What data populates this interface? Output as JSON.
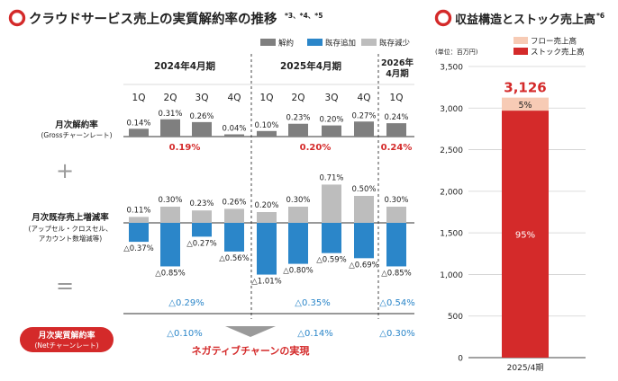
{
  "left_panel": {
    "title": "クラウドサービス売上の実質解約率の推移",
    "title_sup": "*3、*4、*5",
    "legend": [
      {
        "label": "解約",
        "color": "#7f7f7f"
      },
      {
        "label": "既存追加",
        "color": "#2b86c9"
      },
      {
        "label": "既存減少",
        "color": "#bdbdbd"
      }
    ],
    "periods": [
      {
        "label": "2024年4月期"
      },
      {
        "label": "2025年4月期"
      },
      {
        "label_line1": "2026年",
        "label_line2": "4月期"
      }
    ],
    "quarters": [
      "1Q",
      "2Q",
      "3Q",
      "4Q",
      "1Q",
      "2Q",
      "3Q",
      "4Q",
      "1Q"
    ],
    "row1_label": "月次解約率",
    "row1_sublabel": "(Grossチャーンレート)",
    "row2_label": "月次既存売上増減率",
    "row2_sublabel1": "(アップセル・クロスセル、",
    "row2_sublabel2": "アカウント数増減等)",
    "net_label1": "月次実質解約率",
    "net_label2": "(Netチャーンレート)",
    "plus_sign": "+",
    "equal_sign": "=",
    "negative_churn_text": "ネガティブチャーンの実現",
    "gross_period_avgs": [
      "0.19%",
      "0.20%",
      "0.24%"
    ],
    "existing_period_avgs": [
      "△0.29%",
      "△0.35%",
      "△0.54%"
    ],
    "net_period_avgs": [
      "△0.10%",
      "△0.14%",
      "△0.30%"
    ]
  },
  "right_panel": {
    "title": "収益構造とストック売上高",
    "title_sup": "*6",
    "unit": "(単位：百万円)",
    "legend": [
      {
        "label": "フロー売上高",
        "color": "#f7cbb5"
      },
      {
        "label": "ストック売上高",
        "color": "#d42a2a"
      }
    ]
  },
  "chart_data": [
    {
      "type": "bar",
      "title": "クラウドサービス売上の実質解約率の推移",
      "categories": [
        "2024年4月期 1Q",
        "2024年4月期 2Q",
        "2024年4月期 3Q",
        "2024年4月期 4Q",
        "2025年4月期 1Q",
        "2025年4月期 2Q",
        "2025年4月期 3Q",
        "2025年4月期 4Q",
        "2026年4月期 1Q"
      ],
      "series": [
        {
          "name": "解約",
          "values": [
            0.14,
            0.31,
            0.26,
            0.04,
            0.1,
            0.23,
            0.2,
            0.27,
            0.24
          ],
          "labels": [
            "0.14%",
            "0.31%",
            "0.26%",
            "0.04%",
            "0.10%",
            "0.23%",
            "0.20%",
            "0.27%",
            "0.24%"
          ]
        },
        {
          "name": "既存減少",
          "values": [
            0.11,
            0.3,
            0.23,
            0.26,
            0.2,
            0.3,
            0.71,
            0.5,
            0.3
          ],
          "labels": [
            "0.11%",
            "0.30%",
            "0.23%",
            "0.26%",
            "0.20%",
            "0.30%",
            "0.71%",
            "0.50%",
            "0.30%"
          ]
        },
        {
          "name": "既存追加",
          "values": [
            -0.37,
            -0.85,
            -0.27,
            -0.56,
            -1.01,
            -0.8,
            -0.59,
            -0.69,
            -0.85
          ],
          "labels": [
            "△0.37%",
            "△0.85%",
            "△0.27%",
            "△0.56%",
            "△1.01%",
            "△0.80%",
            "△0.59%",
            "△0.69%",
            "△0.85%"
          ]
        }
      ]
    },
    {
      "type": "bar",
      "title": "収益構造とストック売上高",
      "ylabel": "(単位：百万円)",
      "categories": [
        "2025/4期"
      ],
      "total": 3126,
      "total_label": "3,126",
      "ylim": [
        0,
        3500
      ],
      "yticks": [
        0,
        500,
        1000,
        1500,
        2000,
        2500,
        3000,
        3500
      ],
      "ytick_labels": [
        "0",
        "500",
        "1,000",
        "1,500",
        "2,000",
        "2,500",
        "3,000",
        "3,500"
      ],
      "series": [
        {
          "name": "ストック売上高",
          "share": 0.95,
          "share_label": "95%",
          "color": "#d42a2a"
        },
        {
          "name": "フロー売上高",
          "share": 0.05,
          "share_label": "5%",
          "color": "#f7cbb5"
        }
      ]
    }
  ]
}
